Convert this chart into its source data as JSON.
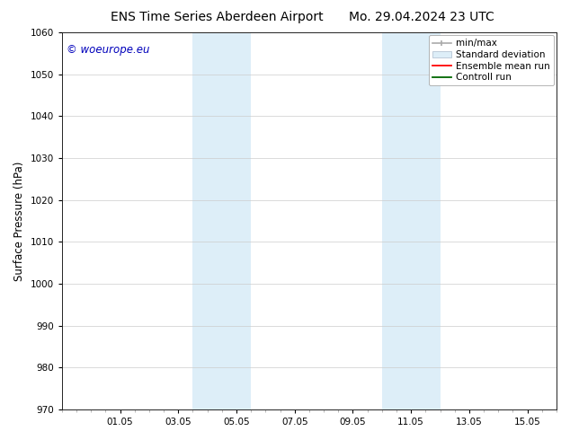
{
  "title_left": "ENS Time Series Aberdeen Airport",
  "title_right": "Mo. 29.04.2024 23 UTC",
  "ylabel": "Surface Pressure (hPa)",
  "ylim": [
    970,
    1060
  ],
  "yticks": [
    970,
    980,
    990,
    1000,
    1010,
    1020,
    1030,
    1040,
    1050,
    1060
  ],
  "xtick_labels": [
    "01.05",
    "03.05",
    "05.05",
    "07.05",
    "09.05",
    "11.05",
    "13.05",
    "15.05"
  ],
  "xtick_positions": [
    2,
    4,
    6,
    8,
    10,
    12,
    14,
    16
  ],
  "xlim": [
    0,
    17
  ],
  "band1_x1": 4.5,
  "band1_x2": 6.5,
  "band2_x1": 11.0,
  "band2_x2": 13.0,
  "band_color": "#ddeef8",
  "watermark_text": "© woeurope.eu",
  "watermark_color": "#0000bb",
  "bg_color": "#ffffff",
  "grid_color": "#cccccc",
  "title_fontsize": 10,
  "tick_fontsize": 7.5,
  "ylabel_fontsize": 8.5,
  "legend_fontsize": 7.5,
  "legend_items": [
    {
      "label": "min/max",
      "color": "#aaaaaa"
    },
    {
      "label": "Standard deviation",
      "color": "#ccddee"
    },
    {
      "label": "Ensemble mean run",
      "color": "#ff0000"
    },
    {
      "label": "Controll run",
      "color": "#006600"
    }
  ]
}
